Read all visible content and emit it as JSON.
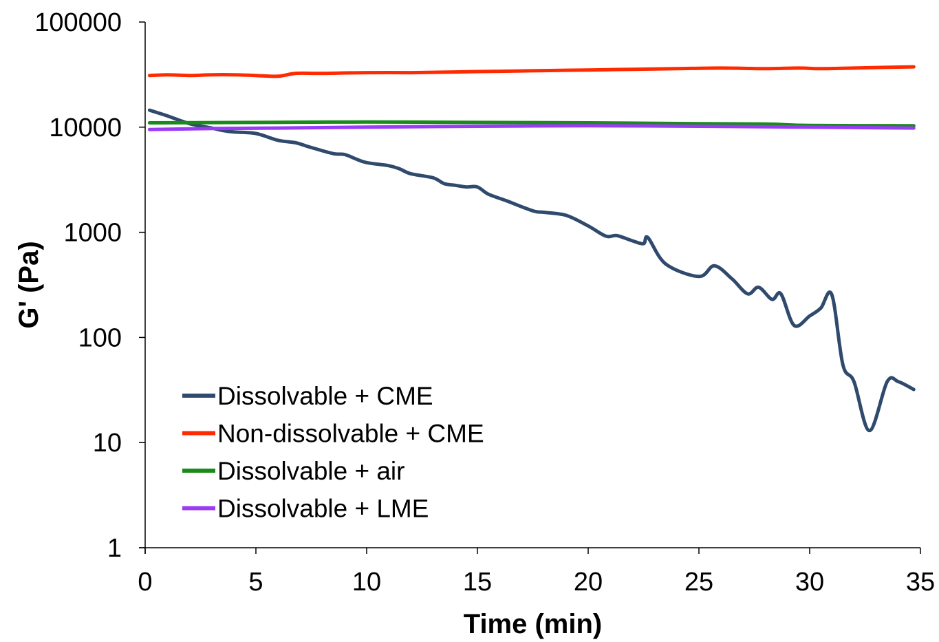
{
  "chart_data": {
    "type": "line",
    "title": "",
    "xlabel": "Time (min)",
    "ylabel": "G' (Pa)",
    "xlim": [
      0,
      35
    ],
    "ylim": [
      1,
      100000
    ],
    "yscale": "log",
    "x_ticks": [
      0,
      5,
      10,
      15,
      20,
      25,
      30,
      35
    ],
    "y_ticks": [
      1,
      10,
      100,
      1000,
      10000,
      100000
    ],
    "x_tick_labels": [
      "0",
      "5",
      "10",
      "15",
      "20",
      "25",
      "30",
      "35"
    ],
    "y_tick_labels": [
      "1",
      "10",
      "100",
      "1000",
      "10000",
      "100000"
    ],
    "grid": false,
    "legend_position": "bottom-left",
    "series": [
      {
        "name": "Dissolvable + CME",
        "color": "#2f4a6d",
        "x": [
          0.2,
          1,
          2,
          3,
          3.5,
          4,
          5,
          6,
          6.8,
          7.5,
          8.5,
          9,
          9.5,
          10,
          11,
          11.5,
          12,
          13,
          13.5,
          14,
          14.5,
          15,
          15.5,
          16.3,
          17.5,
          18,
          19,
          20,
          20.8,
          21.3,
          22,
          22.5,
          22.7,
          23.5,
          25,
          25.7,
          26.5,
          27.2,
          27.7,
          28.3,
          28.7,
          29.3,
          30,
          30.5,
          31,
          31.5,
          32,
          32.7,
          33.5,
          34,
          34.7
        ],
        "y": [
          14500,
          12800,
          10800,
          9800,
          9300,
          9000,
          8700,
          7500,
          7100,
          6400,
          5600,
          5500,
          5000,
          4600,
          4300,
          4000,
          3600,
          3300,
          2900,
          2800,
          2700,
          2700,
          2300,
          2000,
          1600,
          1550,
          1450,
          1150,
          920,
          930,
          830,
          780,
          890,
          500,
          380,
          480,
          360,
          260,
          300,
          230,
          260,
          130,
          160,
          190,
          255,
          55,
          38,
          13,
          38,
          38,
          32
        ]
      },
      {
        "name": "Non-dissolvable + CME",
        "color": "#ff2a00",
        "x": [
          0.2,
          1,
          2,
          3,
          4,
          5,
          6,
          6.8,
          8,
          10,
          12,
          14,
          16,
          18,
          20,
          22,
          24,
          26,
          28,
          29.5,
          30.5,
          32,
          34.7
        ],
        "y": [
          31000,
          31500,
          31000,
          31500,
          31500,
          31000,
          30500,
          32500,
          32500,
          33000,
          33000,
          33500,
          34000,
          34500,
          35000,
          35500,
          36000,
          36500,
          36000,
          36500,
          36000,
          36500,
          37500
        ]
      },
      {
        "name": "Dissolvable + air",
        "color": "#1a8a1a",
        "x": [
          0.2,
          5,
          10,
          15,
          20,
          25,
          28,
          30,
          34.7
        ],
        "y": [
          11000,
          11100,
          11200,
          11100,
          11000,
          10800,
          10700,
          10400,
          10300
        ]
      },
      {
        "name": "Dissolvable + LME",
        "color": "#9a3cf5",
        "x": [
          0.2,
          3,
          6,
          10,
          15,
          20,
          25,
          30,
          34.7
        ],
        "y": [
          9500,
          9700,
          9800,
          10000,
          10200,
          10300,
          10200,
          10000,
          9800
        ]
      }
    ]
  }
}
